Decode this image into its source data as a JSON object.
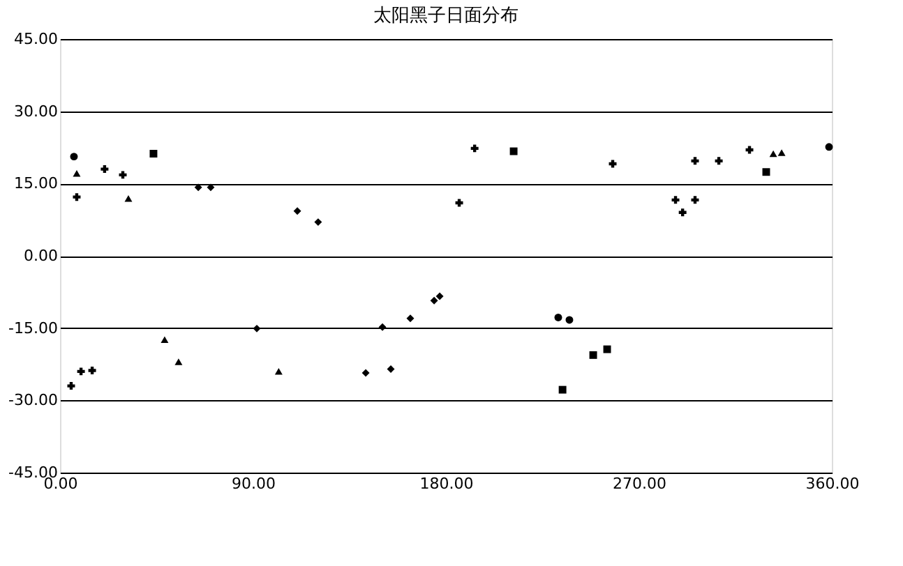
{
  "chart_data": {
    "type": "scatter",
    "title": "太阳黑子日面分布",
    "xlim": [
      0,
      360
    ],
    "xticks": [
      {
        "value": 0,
        "label": "0.00"
      },
      {
        "value": 90,
        "label": "90.00"
      },
      {
        "value": 180,
        "label": "180.00"
      },
      {
        "value": 270,
        "label": "270.00"
      },
      {
        "value": 360,
        "label": "360.00"
      }
    ],
    "ylim": [
      -45,
      45
    ],
    "yticks": [
      {
        "value": -45,
        "label": "-45.00"
      },
      {
        "value": -30,
        "label": "-30.00"
      },
      {
        "value": -15,
        "label": "-15.00"
      },
      {
        "value": 0,
        "label": "0.00"
      },
      {
        "value": 15,
        "label": "15.00"
      },
      {
        "value": 30,
        "label": "30.00"
      },
      {
        "value": 45,
        "label": "45.00"
      }
    ],
    "grid": "y",
    "series": [
      {
        "color": "#000000",
        "marker": "circle",
        "x": [
          6.5,
          232.4,
          237.6,
          358.7
        ],
        "values": [
          20.6,
          -12.8,
          -13.3,
          22.6
        ]
      },
      {
        "color": "#000000",
        "marker": "triangle",
        "x": [
          7.8,
          31.9,
          48.8,
          55.3,
          102,
          332.7,
          336.6
        ],
        "values": [
          17.1,
          11.9,
          -17.4,
          -22.0,
          -24.0,
          21.2,
          21.4
        ]
      },
      {
        "color": "#000000",
        "marker": "square",
        "x": [
          43.6,
          234.4,
          248.7,
          255.2,
          329.4,
          211.6
        ],
        "values": [
          21.2,
          -27.8,
          -20.6,
          -19.4,
          17.4,
          21.7
        ]
      },
      {
        "color": "#000000",
        "marker": "cross",
        "x": [
          20.8,
          29.3,
          5.2,
          9.8,
          15,
          257.8,
          7.8,
          290.4,
          296.2,
          307.3,
          321.6,
          287.1,
          296.2,
          193.4,
          186.2
        ],
        "values": [
          18.0,
          16.8,
          -27.0,
          -24.0,
          -23.8,
          19.1,
          12.2,
          9.0,
          19.7,
          19.7,
          22.0,
          11.6,
          11.6,
          22.3,
          11.0
        ]
      },
      {
        "color": "#000000",
        "marker": "diamond",
        "x": [
          64.5,
          70.3,
          110.7,
          120.4,
          91.8,
          142.6,
          150.4,
          154.3,
          163.4,
          174.5,
          177.1
        ],
        "values": [
          14.2,
          14.2,
          9.3,
          7.0,
          -15.1,
          -24.3,
          -14.8,
          -23.5,
          -13.0,
          -9.3,
          -8.4
        ]
      }
    ]
  }
}
